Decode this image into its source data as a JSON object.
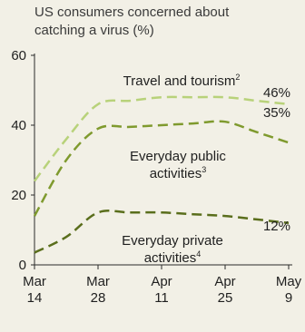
{
  "chart_data": {
    "type": "line",
    "title_lines": [
      "US consumers concerned about",
      "catching a virus (%)"
    ],
    "x_ticks": [
      {
        "x": 0,
        "line1": "Mar",
        "line2": "14"
      },
      {
        "x": 14,
        "line1": "Mar",
        "line2": "28"
      },
      {
        "x": 28,
        "line1": "Apr",
        "line2": "11"
      },
      {
        "x": 42,
        "line1": "Apr",
        "line2": "25"
      },
      {
        "x": 56,
        "line1": "May",
        "line2": "9"
      }
    ],
    "y_ticks": [
      0,
      20,
      40,
      60
    ],
    "ylim": [
      0,
      60
    ],
    "xlim": [
      0,
      56
    ],
    "grid": false,
    "series": [
      {
        "name_lines": [
          "Travel and tourism"
        ],
        "footnote": "2",
        "color": "#b8d27a",
        "end_label": "46%",
        "points": [
          [
            0,
            24
          ],
          [
            7,
            36
          ],
          [
            14,
            46
          ],
          [
            21,
            47
          ],
          [
            28,
            48
          ],
          [
            35,
            48
          ],
          [
            42,
            48
          ],
          [
            49,
            47
          ],
          [
            56,
            46
          ]
        ]
      },
      {
        "name_lines": [
          "Everyday public",
          "activities"
        ],
        "footnote": "3",
        "color": "#7f9a2e",
        "end_label": "35%",
        "points": [
          [
            0,
            14
          ],
          [
            7,
            30
          ],
          [
            14,
            39
          ],
          [
            21,
            39.5
          ],
          [
            28,
            40
          ],
          [
            35,
            40.5
          ],
          [
            42,
            41
          ],
          [
            49,
            38
          ],
          [
            56,
            35
          ]
        ]
      },
      {
        "name_lines": [
          "Everyday private",
          "activities"
        ],
        "footnote": "4",
        "color": "#5a6e1c",
        "end_label": "12%",
        "points": [
          [
            0,
            3.5
          ],
          [
            7,
            8
          ],
          [
            14,
            15
          ],
          [
            21,
            15
          ],
          [
            28,
            15
          ],
          [
            35,
            14.5
          ],
          [
            42,
            14
          ],
          [
            49,
            13
          ],
          [
            56,
            12
          ]
        ]
      }
    ]
  }
}
